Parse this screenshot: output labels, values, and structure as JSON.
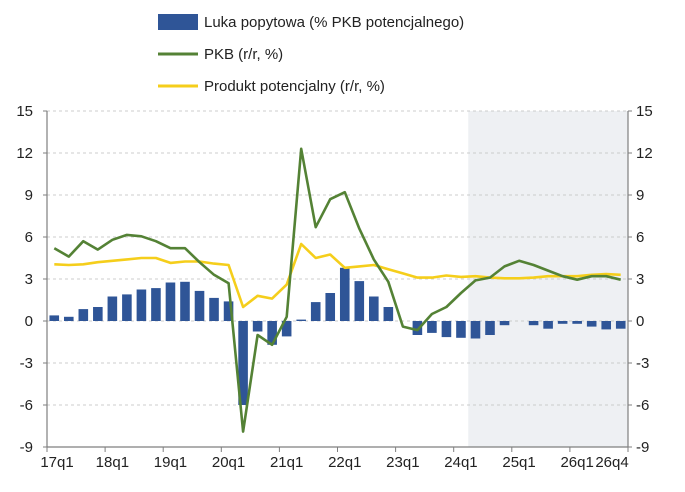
{
  "chart_data": {
    "type": "bar+line",
    "categories": [
      "17q1",
      "17q2",
      "17q3",
      "17q4",
      "18q1",
      "18q2",
      "18q3",
      "18q4",
      "19q1",
      "19q2",
      "19q3",
      "19q4",
      "20q1",
      "20q2",
      "20q3",
      "20q4",
      "21q1",
      "21q2",
      "21q3",
      "21q4",
      "22q1",
      "22q2",
      "22q3",
      "22q4",
      "23q1",
      "23q2",
      "23q3",
      "23q4",
      "24q1",
      "24q2",
      "24q3",
      "24q4",
      "25q1",
      "25q2",
      "25q3",
      "25q4",
      "26q1",
      "26q2",
      "26q3",
      "26q4"
    ],
    "tick_labels": [
      "17q1",
      "18q1",
      "19q1",
      "20q1",
      "21q1",
      "22q1",
      "23q1",
      "24q1",
      "25q1",
      "26q1",
      "26q4"
    ],
    "y_ticks": [
      -9,
      -6,
      -3,
      0,
      3,
      6,
      9,
      12,
      15
    ],
    "ylim": [
      -9,
      15
    ],
    "grid": "horizontal dashed",
    "legend_position": "top",
    "forecast_shaded_from": "24q2",
    "series": [
      {
        "name": "Luka popytowa (% PKB potencjalnego)",
        "kind": "bar",
        "color": "#2F5597",
        "values": [
          0.4,
          0.3,
          0.85,
          1.0,
          1.75,
          1.9,
          2.25,
          2.35,
          2.75,
          2.8,
          2.15,
          1.65,
          1.4,
          -6.0,
          -0.75,
          -1.7,
          -1.1,
          0.1,
          1.35,
          2.0,
          3.8,
          2.85,
          1.75,
          1.0,
          0,
          -1.0,
          -0.85,
          -1.15,
          -1.2,
          -1.25,
          -1.0,
          -0.3,
          0,
          -0.3,
          -0.55,
          -0.2,
          -0.2,
          -0.4,
          -0.6,
          -0.55
        ]
      },
      {
        "name": "PKB (r/r, %)",
        "kind": "line",
        "color": "#548235",
        "values": [
          5.2,
          4.6,
          5.7,
          5.1,
          5.8,
          6.15,
          6.05,
          5.7,
          5.2,
          5.2,
          4.2,
          3.3,
          2.7,
          -7.9,
          -1.0,
          -1.7,
          0.3,
          12.3,
          6.7,
          8.7,
          9.2,
          6.6,
          4.4,
          2.8,
          -0.4,
          -0.65,
          0.5,
          1.0,
          2.0,
          2.9,
          3.1,
          3.9,
          4.3,
          4.0,
          3.6,
          3.2,
          2.95,
          3.2,
          3.2,
          2.95
        ]
      },
      {
        "name": "Produkt potencjalny (r/r, %)",
        "kind": "line",
        "color": "#F5CE1B",
        "values": [
          4.05,
          4.0,
          4.05,
          4.2,
          4.3,
          4.4,
          4.5,
          4.5,
          4.15,
          4.25,
          4.25,
          4.1,
          4.0,
          1.0,
          1.8,
          1.6,
          2.6,
          5.5,
          4.5,
          4.75,
          3.8,
          3.9,
          4.0,
          3.7,
          3.4,
          3.1,
          3.1,
          3.25,
          3.15,
          3.2,
          3.1,
          3.05,
          3.05,
          3.1,
          3.2,
          3.2,
          3.2,
          3.3,
          3.35,
          3.3
        ]
      }
    ],
    "colors": {
      "shade": "#EEF0F3",
      "grid": "#BFBFBF",
      "axis": "#7F7F7F"
    }
  }
}
